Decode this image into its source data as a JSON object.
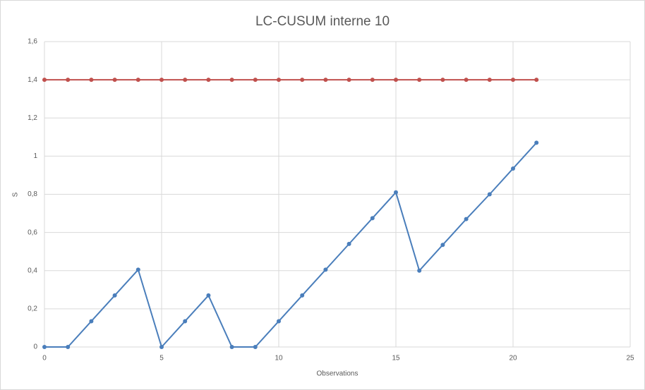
{
  "chart_data": {
    "type": "line",
    "title": "LC-CUSUM interne 10",
    "xlabel": "Observations",
    "ylabel": "S",
    "x": [
      0,
      1,
      2,
      3,
      4,
      5,
      6,
      7,
      8,
      9,
      10,
      11,
      12,
      13,
      14,
      15,
      16,
      17,
      18,
      19,
      20,
      21
    ],
    "series": [
      {
        "color": "#c0504d",
        "values": [
          1.4,
          1.4,
          1.4,
          1.4,
          1.4,
          1.4,
          1.4,
          1.4,
          1.4,
          1.4,
          1.4,
          1.4,
          1.4,
          1.4,
          1.4,
          1.4,
          1.4,
          1.4,
          1.4,
          1.4,
          1.4,
          1.4
        ]
      },
      {
        "color": "#4a7ebb",
        "values": [
          0,
          0,
          0.135,
          0.27,
          0.405,
          0,
          0.135,
          0.27,
          0,
          0,
          0.135,
          0.27,
          0.405,
          0.54,
          0.675,
          0.81,
          0.4,
          0.535,
          0.67,
          0.8,
          0.935,
          1.07
        ]
      }
    ],
    "xlim": [
      0,
      25
    ],
    "xticks": [
      0,
      5,
      10,
      15,
      20,
      25
    ],
    "ylim": [
      0,
      1.6
    ],
    "yticks": [
      0,
      {
        "value": 0.2,
        "label": "0,2"
      },
      {
        "value": 0.4,
        "label": "0,4"
      },
      {
        "value": 0.6,
        "label": "0,6"
      },
      {
        "value": 0.8,
        "label": "0,8"
      },
      1,
      {
        "value": 1.2,
        "label": "1,2"
      },
      {
        "value": 1.4,
        "label": "1,4"
      },
      {
        "value": 1.6,
        "label": "1,6"
      }
    ],
    "grid": true
  }
}
